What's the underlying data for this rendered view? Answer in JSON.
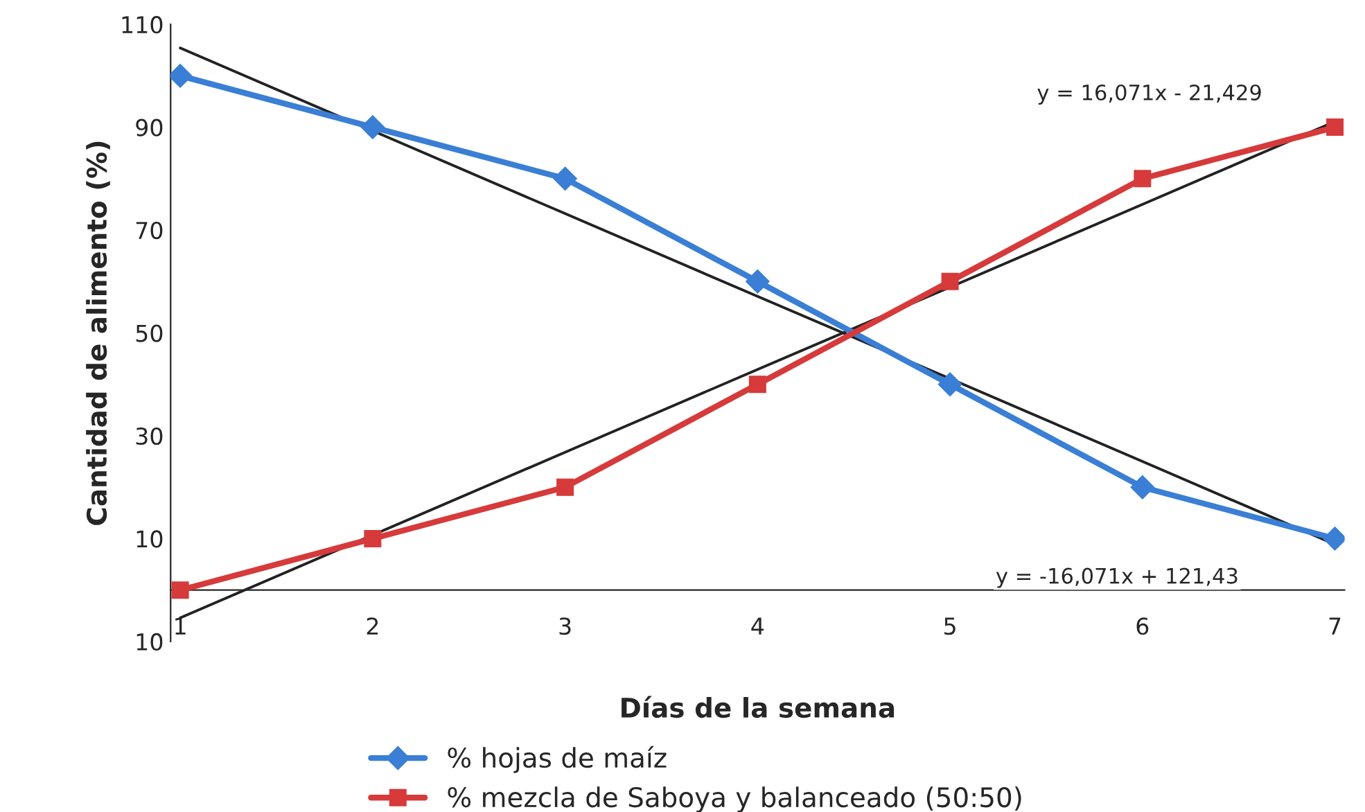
{
  "chart_data": {
    "type": "line",
    "xlabel": "Días de la semana",
    "ylabel": "Cantidad de alimento (%)",
    "x": [
      1,
      2,
      3,
      4,
      5,
      6,
      7
    ],
    "series": [
      {
        "name": "% hojas de maíz",
        "color": "#3a7fd5",
        "values": [
          100,
          90,
          80,
          60,
          40,
          20,
          10
        ],
        "marker": "diamond"
      },
      {
        "name": "% mezcla de Saboya y balanceado (50:50)",
        "color": "#d63a3a",
        "values": [
          0,
          10,
          20,
          40,
          60,
          80,
          90
        ],
        "marker": "square"
      },
      {
        "type": "line",
        "color": "#222222",
        "values": [
          105.4,
          89.3,
          73.2,
          57.1,
          41.1,
          25.0,
          8.9
        ],
        "marker": "none"
      },
      {
        "type": "line",
        "color": "#222222",
        "values": [
          -5.4,
          10.7,
          26.8,
          42.9,
          58.9,
          75.0,
          91.1
        ],
        "marker": "none"
      }
    ],
    "xlim": [
      0.95,
      7.05
    ],
    "ylim": [
      -10,
      110
    ],
    "xticks": [
      1,
      2,
      3,
      4,
      5,
      6,
      7
    ],
    "yticks": [
      {
        "value": -10,
        "label": "10"
      },
      10,
      30,
      50,
      70,
      90,
      110
    ],
    "annotations": [
      "y = 16,071x - 21,429",
      "y = -16,071x + 121,43"
    ],
    "grid": false,
    "legend": "bottom",
    "line_style": "solid"
  }
}
